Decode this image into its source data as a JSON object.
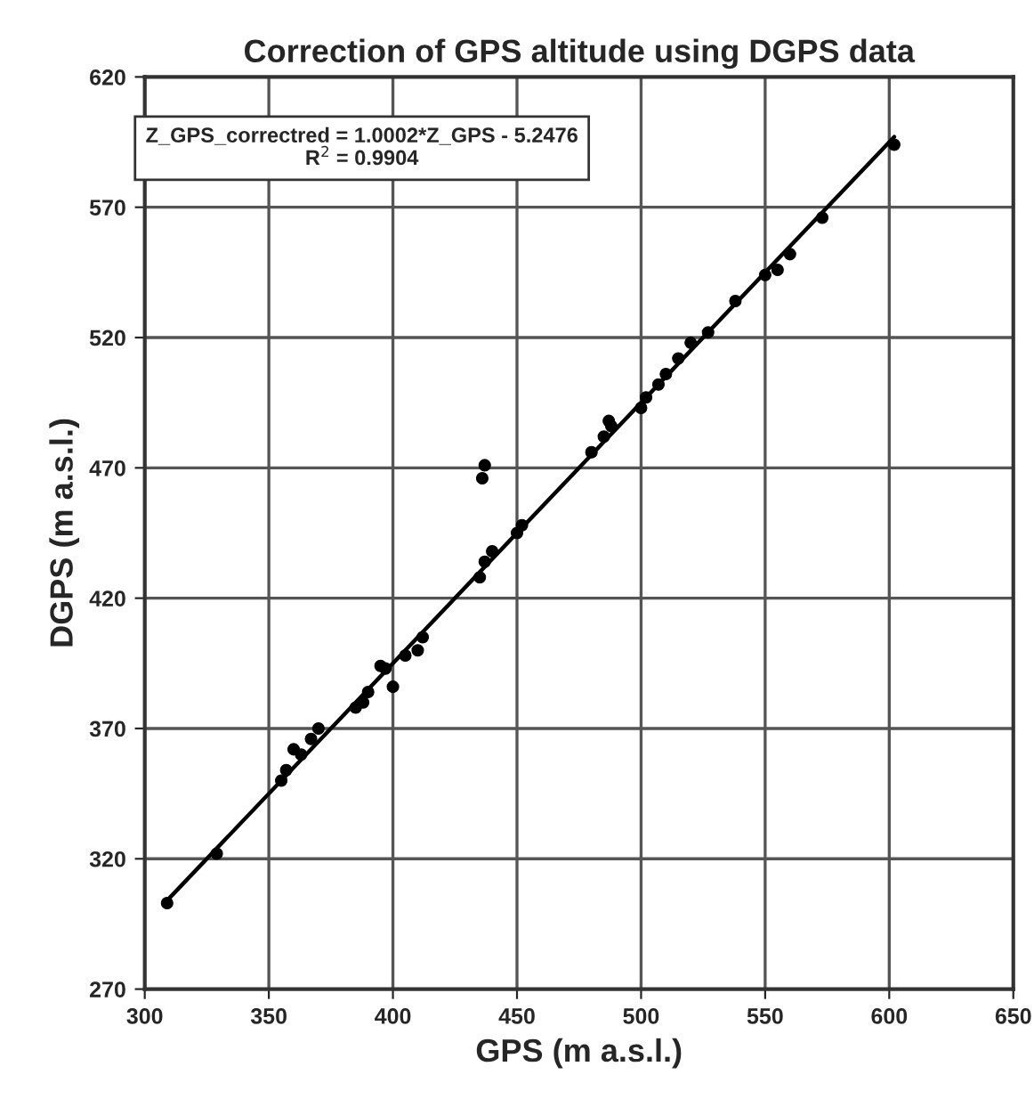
{
  "chart_data": {
    "type": "scatter",
    "title": "Correction of GPS altitude using DGPS data",
    "xlabel": "GPS (m a.s.l.)",
    "ylabel": "DGPS (m a.s.l.)",
    "annotations": [
      "Z_GPS_correctred = 1.0002*Z_GPS - 5.2476\nR$^{2}$ = 0.9904"
    ],
    "series": [
      {
        "color": "#000000",
        "x": [
          309,
          329,
          355,
          357,
          360,
          363,
          367,
          370,
          385,
          388,
          390,
          395,
          397,
          400,
          405,
          410,
          412,
          435,
          437,
          436,
          437,
          440,
          450,
          452,
          480,
          485,
          488,
          487,
          500,
          502,
          507,
          510,
          515,
          520,
          527,
          538,
          550,
          555,
          560,
          573,
          602
        ],
        "values": [
          303,
          322,
          350,
          354,
          362,
          360,
          366,
          370,
          378,
          380,
          384,
          394,
          393,
          386,
          398,
          400,
          405,
          428,
          434,
          466,
          471,
          438,
          445,
          448,
          476,
          482,
          486,
          488,
          493,
          497,
          502,
          506,
          512,
          518,
          522,
          534,
          544,
          546,
          552,
          566,
          594
        ]
      },
      {
        "type": "line",
        "marker": "none",
        "color": "#000000",
        "x": [
          309,
          602
        ],
        "values": [
          304,
          597
        ]
      }
    ],
    "xlim": [
      300,
      650
    ],
    "xticks": [
      300,
      350,
      400,
      450,
      500,
      550,
      600,
      650
    ],
    "ylim": [
      270,
      620
    ],
    "yticks": [
      270,
      320,
      370,
      420,
      470,
      520,
      570,
      620
    ],
    "grid": true,
    "marker": "circle",
    "legend": false
  }
}
